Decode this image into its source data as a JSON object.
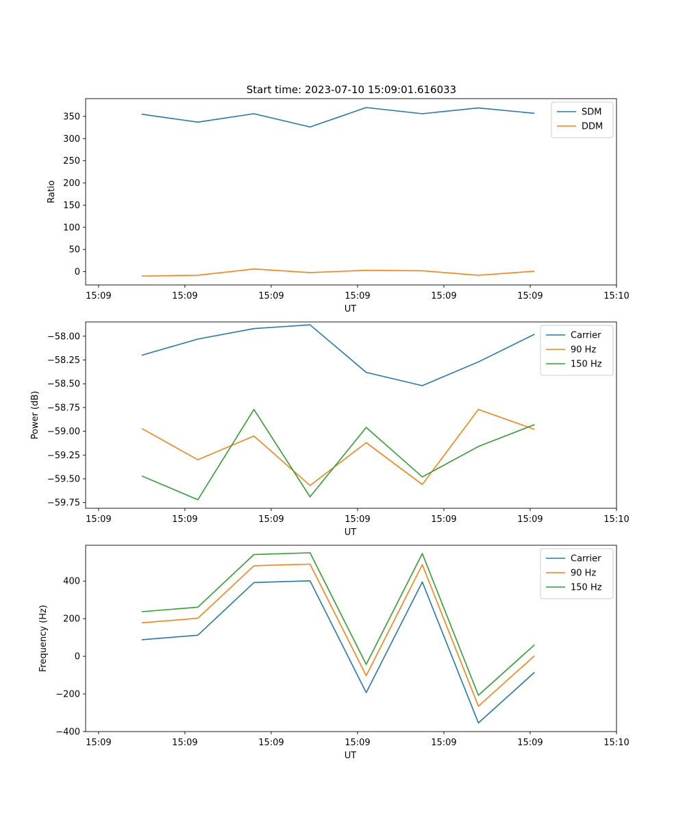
{
  "figure_title": "Start time: 2023-07-10 15:09:01.616033",
  "chart_data": [
    {
      "type": "line",
      "title": "Start time: 2023-07-10 15:09:01.616033",
      "xlabel": "UT",
      "ylabel": "Ratio",
      "x": [
        0.5,
        1.15,
        1.8,
        2.45,
        3.1,
        3.75,
        4.4,
        5.05
      ],
      "xlim": [
        -0.15,
        6.0
      ],
      "xticks": [
        0,
        1,
        2,
        3,
        4,
        5,
        6
      ],
      "xtick_labels": [
        "15:09",
        "15:09",
        "15:09",
        "15:09",
        "15:09",
        "15:09",
        "15:10"
      ],
      "ylim": [
        -30,
        390
      ],
      "yticks": [
        0,
        50,
        100,
        150,
        200,
        250,
        300,
        350
      ],
      "ytick_labels": [
        "0",
        "50",
        "100",
        "150",
        "200",
        "250",
        "300",
        "350"
      ],
      "legend_position": "top-right",
      "series": [
        {
          "name": "SDM",
          "color": "#1f77b4",
          "values": [
            355,
            337,
            356,
            326,
            370,
            356,
            369,
            357
          ]
        },
        {
          "name": "DDM",
          "color": "#ff7f0e",
          "values": [
            -10,
            -8,
            6,
            -2,
            3,
            2,
            -8,
            1
          ]
        }
      ]
    },
    {
      "type": "line",
      "title": "",
      "xlabel": "UT",
      "ylabel": "Power (dB)",
      "x": [
        0.5,
        1.15,
        1.8,
        2.45,
        3.1,
        3.75,
        4.4,
        5.05
      ],
      "xlim": [
        -0.15,
        6.0
      ],
      "xticks": [
        0,
        1,
        2,
        3,
        4,
        5,
        6
      ],
      "xtick_labels": [
        "15:09",
        "15:09",
        "15:09",
        "15:09",
        "15:09",
        "15:09",
        "15:10"
      ],
      "ylim": [
        -59.81,
        -57.85
      ],
      "yticks": [
        -59.75,
        -59.5,
        -59.25,
        -59.0,
        -58.75,
        -58.5,
        -58.25,
        -58.0
      ],
      "ytick_labels": [
        "−59.75",
        "−59.50",
        "−59.25",
        "−59.00",
        "−58.75",
        "−58.50",
        "−58.25",
        "−58.00"
      ],
      "legend_position": "top-right",
      "series": [
        {
          "name": "Carrier",
          "color": "#1f77b4",
          "values": [
            -58.2,
            -58.03,
            -57.92,
            -57.88,
            -58.38,
            -58.52,
            -58.27,
            -57.98
          ]
        },
        {
          "name": "90 Hz",
          "color": "#ff7f0e",
          "values": [
            -58.97,
            -59.3,
            -59.05,
            -59.57,
            -59.12,
            -59.56,
            -58.77,
            -58.98
          ]
        },
        {
          "name": "150 Hz",
          "color": "#2ca02c",
          "values": [
            -59.47,
            -59.72,
            -58.77,
            -59.69,
            -58.96,
            -59.48,
            -59.16,
            -58.93
          ]
        }
      ]
    },
    {
      "type": "line",
      "title": "",
      "xlabel": "UT",
      "ylabel": "Frequency (Hz)",
      "x": [
        0.5,
        1.15,
        1.8,
        2.45,
        3.1,
        3.75,
        4.4,
        5.05
      ],
      "xlim": [
        -0.15,
        6.0
      ],
      "xticks": [
        0,
        1,
        2,
        3,
        4,
        5,
        6
      ],
      "xtick_labels": [
        "15:09",
        "15:09",
        "15:09",
        "15:09",
        "15:09",
        "15:09",
        "15:10"
      ],
      "ylim": [
        -400,
        590
      ],
      "yticks": [
        -400,
        -200,
        0,
        200,
        400
      ],
      "ytick_labels": [
        "−400",
        "−200",
        "0",
        "200",
        "400"
      ],
      "legend_position": "top-right",
      "series": [
        {
          "name": "Carrier",
          "color": "#1f77b4",
          "values": [
            88,
            112,
            392,
            401,
            -193,
            395,
            -354,
            -85
          ]
        },
        {
          "name": "90 Hz",
          "color": "#ff7f0e",
          "values": [
            178,
            202,
            481,
            490,
            -103,
            487,
            -265,
            3
          ]
        },
        {
          "name": "150 Hz",
          "color": "#2ca02c",
          "values": [
            237,
            261,
            541,
            550,
            -43,
            546,
            -207,
            61
          ]
        }
      ]
    }
  ]
}
